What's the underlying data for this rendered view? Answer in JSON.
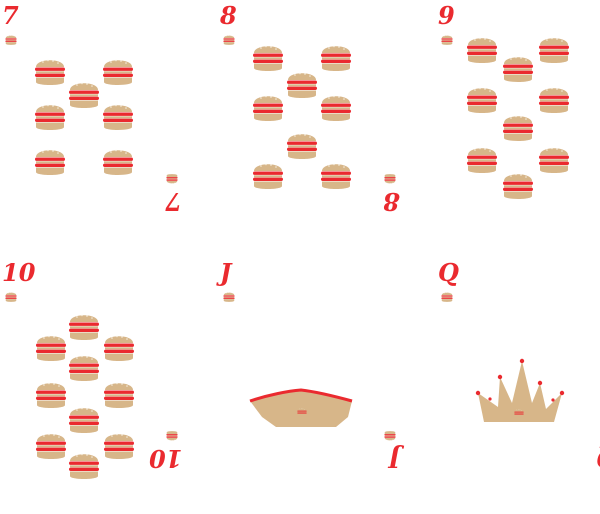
{
  "colors": {
    "bun": "#d7b689",
    "bun_dark": "#c9a574",
    "meat": "#ea2a2f",
    "sesame": "#f5ecdc",
    "jewel": "#ea2a2f"
  },
  "suit_icon": "burger-icon",
  "cards": [
    {
      "rank": "7",
      "pips": 7
    },
    {
      "rank": "8",
      "pips": 8
    },
    {
      "rank": "9",
      "pips": 9
    },
    {
      "rank": "10",
      "pips": 10
    },
    {
      "rank": "J",
      "face": "jack-hat"
    },
    {
      "rank": "Q",
      "face": "queen-crown"
    }
  ]
}
